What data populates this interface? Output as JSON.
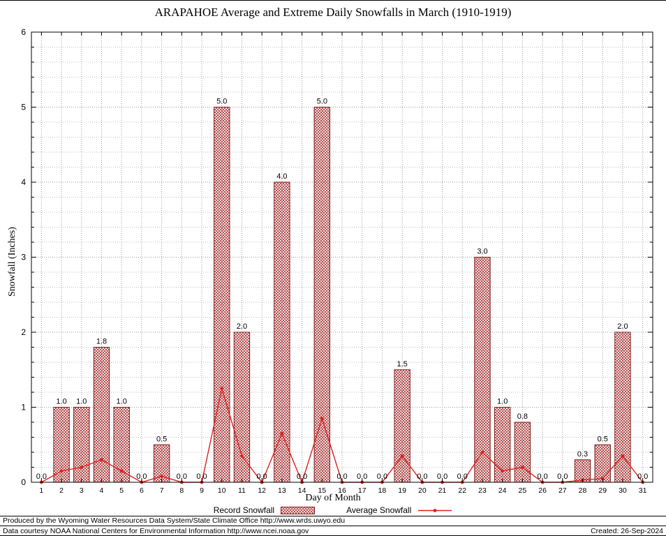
{
  "chart_data": {
    "type": "bar",
    "title": "ARAPAHOE Average and Extreme Daily Snowfalls in March (1910-1919)",
    "xlabel": "Day of Month",
    "ylabel": "Snowfall (Inches)",
    "ylim": [
      0,
      6
    ],
    "y_major_step": 1,
    "y_minor_step": 0.2,
    "grid": true,
    "legend_position": "bottom",
    "categories": [
      1,
      2,
      3,
      4,
      5,
      6,
      7,
      8,
      9,
      10,
      11,
      12,
      13,
      14,
      15,
      16,
      17,
      18,
      19,
      20,
      21,
      22,
      23,
      24,
      25,
      26,
      27,
      28,
      29,
      30,
      31
    ],
    "series": [
      {
        "name": "Record Snowfall",
        "type": "bar",
        "values": [
          0,
          1,
          1,
          1.8,
          1,
          0,
          0.5,
          0,
          0,
          5,
          2,
          0,
          4,
          0,
          5,
          0,
          0,
          0,
          1.5,
          0,
          0,
          0,
          3,
          1,
          0.8,
          0,
          0,
          0.3,
          0.5,
          2,
          0
        ]
      },
      {
        "name": "Average Snowfall",
        "type": "line",
        "values": [
          0,
          0.15,
          0.2,
          0.3,
          0.15,
          0,
          0.08,
          0,
          0,
          1.25,
          0.35,
          0,
          0.65,
          0,
          0.85,
          0,
          0,
          0,
          0.35,
          0,
          0,
          0,
          0.4,
          0.15,
          0.2,
          0,
          0,
          0.03,
          0.05,
          0.35,
          0
        ]
      }
    ],
    "bar_value_labels": [
      "0.0",
      "1.0",
      "1.0",
      "1.8",
      "1.0",
      "0.0",
      "0.5",
      "0.0",
      "0.0",
      "5.0",
      "2.0",
      "0.0",
      "4.0",
      "0.0",
      "5.0",
      "0.0",
      "0.0",
      "0.0",
      "1.5",
      "0.0",
      "0.0",
      "0.0",
      "3.0",
      "1.0",
      "0.8",
      "0.0",
      "0.0",
      "0.3",
      "0.5",
      "2.0",
      "0.0"
    ],
    "colors": {
      "bar_hatch": "#a83232",
      "bar_edge": "#7f1d1d",
      "line": "#e02020",
      "grid_major": "#9a9a9a",
      "grid_minor": "#c0c0c0",
      "axis": "#000000",
      "text": "#000000"
    }
  },
  "footer": {
    "line1": "Produced by the Wyoming Water Resources Data System/State Climate Office http://www.wrds.uwyo.edu",
    "line2": "Data courtesy NOAA National Centers for Environmental Information http://www.ncei.noaa.gov",
    "created": "Created: 26-Sep-2024"
  }
}
